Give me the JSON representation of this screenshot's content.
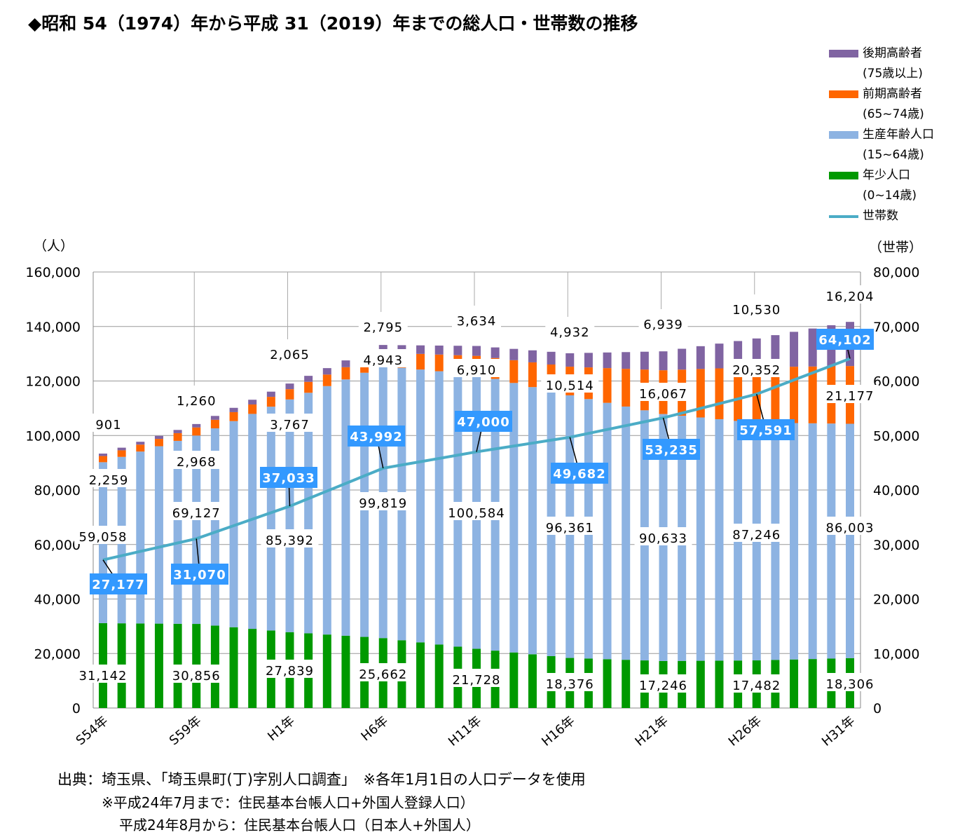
{
  "title": "◆昭和 54（1974）年から平成 31（2019）年までの総人口・世帯数の推移",
  "legend": [
    {
      "label": "後期高齢者",
      "sub": "(75歳以上)",
      "color": "#8064a2",
      "kind": "bar"
    },
    {
      "label": "前期高齢者",
      "sub": "(65~74歳)",
      "color": "#ff6600",
      "kind": "bar"
    },
    {
      "label": "生産年齢人口",
      "sub": "(15~64歳)",
      "color": "#8db3e2",
      "kind": "bar"
    },
    {
      "label": "年少人口",
      "sub": "(0~14歳)",
      "color": "#009900",
      "kind": "bar"
    },
    {
      "label": "世帯数",
      "sub": "",
      "color": "#4bacc6",
      "kind": "line"
    }
  ],
  "footnotes": [
    "出典：埼玉県、「埼玉県町(丁)字別人口調査」　※各年1月1日の人口データを使用",
    "※平成24年7月まで：住民基本台帳人口+外国人登録人口）",
    "平成24年8月から：住民基本台帳人口（日本人+外国人）"
  ],
  "chart_data": {
    "type": "bar",
    "stacked": true,
    "ylabel": "（人）",
    "y2label": "（世帯）",
    "ylim": [
      0,
      160000
    ],
    "y2lim": [
      0,
      80000
    ],
    "yticks": [
      "0",
      "20,000",
      "40,000",
      "60,000",
      "80,000",
      "100,000",
      "120,000",
      "140,000",
      "160,000"
    ],
    "y2ticks": [
      "0",
      "10,000",
      "20,000",
      "30,000",
      "40,000",
      "50,000",
      "60,000",
      "70,000",
      "80,000"
    ],
    "grid": true,
    "categories": [
      "S54年",
      "S55年",
      "S56年",
      "S57年",
      "S58年",
      "S59年",
      "S60年",
      "S61年",
      "S62年",
      "S63年",
      "H1年",
      "H2年",
      "H3年",
      "H4年",
      "H5年",
      "H6年",
      "H7年",
      "H8年",
      "H9年",
      "H10年",
      "H11年",
      "H12年",
      "H13年",
      "H14年",
      "H15年",
      "H16年",
      "H17年",
      "H18年",
      "H19年",
      "H20年",
      "H21年",
      "H22年",
      "H23年",
      "H24年",
      "H25年",
      "H26年",
      "H27年",
      "H28年",
      "H29年",
      "H30年",
      "H31年"
    ],
    "tick_labels": [
      "S54年",
      "S59年",
      "H1年",
      "H6年",
      "H11年",
      "H16年",
      "H21年",
      "H26年",
      "H31年"
    ],
    "labeled_index": [
      0,
      5,
      10,
      15,
      20,
      25,
      30,
      35,
      40
    ],
    "series": [
      {
        "name": "年少人口",
        "color": "#009900",
        "values": [
          31142,
          31085,
          31028,
          30970,
          30913,
          30856,
          30253,
          29649,
          29046,
          28442,
          27839,
          27404,
          26968,
          26533,
          26097,
          25662,
          24875,
          24088,
          23302,
          22515,
          21728,
          21058,
          20387,
          19717,
          19046,
          18376,
          18150,
          17924,
          17698,
          17472,
          17246,
          17293,
          17340,
          17388,
          17435,
          17482,
          17647,
          17812,
          17976,
          18141,
          18306
        ],
        "data_labels": [
          "31,142",
          "30,856",
          "27,839",
          "25,662",
          "21,728",
          "18,376",
          "17,246",
          "17,482",
          "18,306"
        ]
      },
      {
        "name": "生産年齢人口",
        "color": "#8db3e2",
        "values": [
          59058,
          61072,
          63086,
          65099,
          67113,
          69127,
          72380,
          75633,
          78886,
          82139,
          85392,
          88277,
          91163,
          94048,
          96934,
          99819,
          99972,
          100125,
          100278,
          100431,
          100584,
          99739,
          98894,
          98050,
          97205,
          96361,
          95215,
          94070,
          92924,
          91779,
          90633,
          89956,
          89278,
          88601,
          87923,
          87246,
          86997,
          86748,
          86500,
          86251,
          86003
        ],
        "data_labels": [
          "59,058",
          "69,127",
          "85,392",
          "99,819",
          "100,584",
          "96,361",
          "90,633",
          "87,246",
          "86,003"
        ]
      },
      {
        "name": "前期高齢者",
        "color": "#ff6600",
        "values": [
          2259,
          2401,
          2543,
          2684,
          2826,
          2968,
          3128,
          3288,
          3447,
          3607,
          3767,
          4002,
          4237,
          4473,
          4708,
          4943,
          5336,
          5730,
          6123,
          6517,
          6910,
          7631,
          8352,
          9072,
          9793,
          10514,
          11625,
          12735,
          13846,
          14956,
          16067,
          16924,
          17781,
          18638,
          19495,
          20352,
          20517,
          20682,
          20847,
          21012,
          21177
        ],
        "data_labels": [
          "2,259",
          "2,968",
          "3,767",
          "4,943",
          "6,910",
          "10,514",
          "16,067",
          "20,352",
          "21,177"
        ]
      },
      {
        "name": "後期高齢者",
        "color": "#8064a2",
        "values": [
          901,
          973,
          1045,
          1116,
          1188,
          1260,
          1421,
          1582,
          1743,
          1904,
          2065,
          2211,
          2357,
          2503,
          2649,
          2795,
          2963,
          3131,
          3298,
          3466,
          3634,
          3894,
          4154,
          4413,
          4673,
          4932,
          5333,
          5735,
          6136,
          6538,
          6939,
          7657,
          8375,
          9094,
          9812,
          10530,
          11665,
          12800,
          13934,
          15069,
          16204
        ],
        "data_labels": [
          "901",
          "1,260",
          "2,065",
          "2,795",
          "3,634",
          "4,932",
          "6,939",
          "10,530",
          "16,204"
        ]
      },
      {
        "name": "世帯数",
        "color": "#4bacc6",
        "type": "line",
        "axis": "right",
        "values": [
          27177,
          27956,
          28734,
          29513,
          30291,
          31070,
          32263,
          33455,
          34648,
          35840,
          37033,
          38425,
          39817,
          41208,
          42600,
          43992,
          44594,
          45195,
          45797,
          46398,
          47000,
          47536,
          48073,
          48609,
          49146,
          49682,
          50393,
          51103,
          51814,
          52524,
          53235,
          54106,
          54977,
          55849,
          56720,
          57591,
          58893,
          60195,
          61498,
          62800,
          64102
        ],
        "data_labels": [
          "27,177",
          "31,070",
          "37,033",
          "43,992",
          "47,000",
          "49,682",
          "53,235",
          "57,591",
          "64,102"
        ]
      }
    ]
  }
}
